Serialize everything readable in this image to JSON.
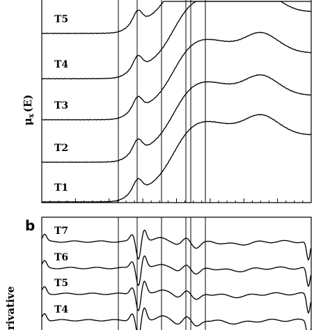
{
  "chart_data": [
    {
      "type": "line",
      "panel": "",
      "ylabel": "μ",
      "ylabel_sub": "x",
      "ylabel_suffix": "(E)",
      "reference_lines": 6,
      "series": [
        {
          "name": "T5",
          "offset": 0
        },
        {
          "name": "T4",
          "offset": 1
        },
        {
          "name": "T3",
          "offset": 2
        },
        {
          "name": "T2",
          "offset": 3
        },
        {
          "name": "T1",
          "offset": 4
        }
      ]
    },
    {
      "type": "line",
      "panel": "b",
      "ylabel": "rivative",
      "series": [
        {
          "name": "T7",
          "offset": 0
        },
        {
          "name": "T6",
          "offset": 1
        },
        {
          "name": "T5",
          "offset": 2
        },
        {
          "name": "T4",
          "offset": 3
        }
      ]
    }
  ]
}
